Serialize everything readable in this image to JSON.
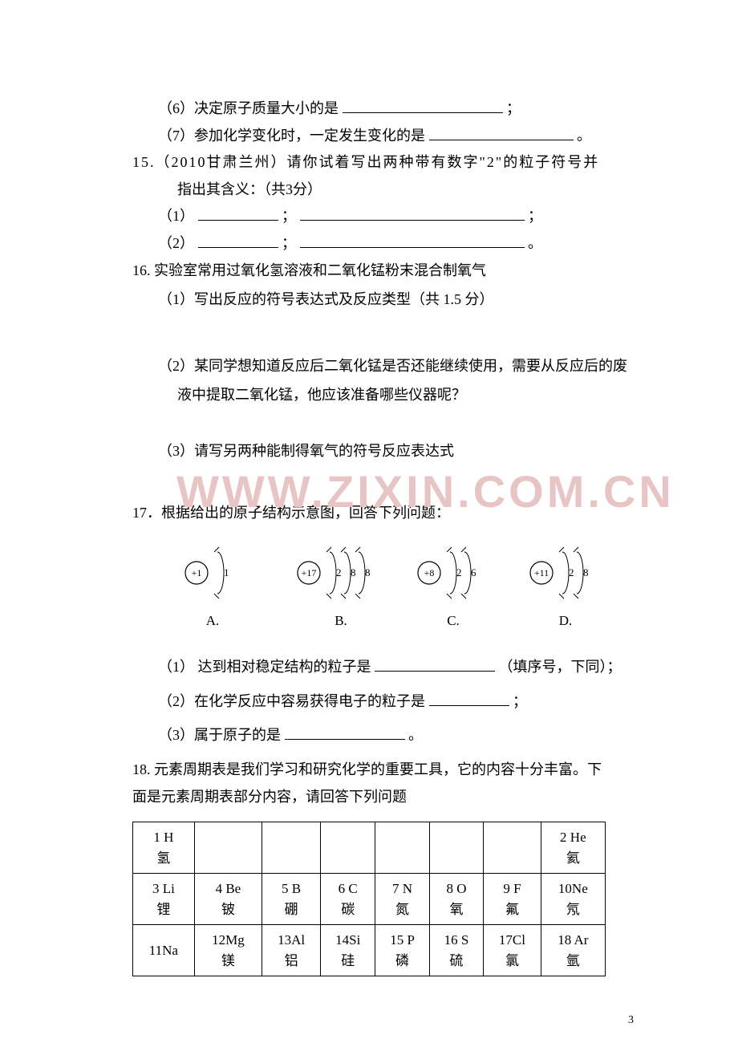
{
  "q14": {
    "item6": "（6）决定原子质量大小的是",
    "item6_after": "；",
    "item7": "（7）参加化学变化时，一定发生变化的是",
    "item7_after": "。"
  },
  "q15": {
    "stem": "15.（2010甘肃兰州）请你试着写出两种带有数字\"2\"的粒子符号并",
    "stem2": "指出其含义：（共3分）",
    "i1": "（1）",
    "i1_after": "；",
    "i1_end": "；",
    "i2": "（2）",
    "i2_after": "；",
    "i2_end": "。"
  },
  "q16": {
    "stem": "16. 实验室常用过氧化氢溶液和二氧化锰粉末混合制氧气",
    "p1": "（1）写出反应的符号表达式及反应类型（共 1.5 分）",
    "p2a": "（2）某同学想知道反应后二氧化锰是否还能继续使用，需要从反应后的废",
    "p2b": "液中提取二氧化锰，他应该准备哪些仪器呢？",
    "p3": "（3）请写另两种能制得氧气的符号反应表达式"
  },
  "q17": {
    "stem": "17．根据给出的原子结构示意图，回答下列问题：",
    "atoms": [
      {
        "label": "A.",
        "core": "+1",
        "shells": [
          "1"
        ]
      },
      {
        "label": "B.",
        "core": "+17",
        "shells": [
          "2",
          "8",
          "8"
        ]
      },
      {
        "label": "C.",
        "core": "+8",
        "shells": [
          "2",
          "6"
        ]
      },
      {
        "label": "D.",
        "core": "+11",
        "shells": [
          "2",
          "8"
        ]
      }
    ],
    "p1a": "（1）  达到相对稳定结构的粒子是",
    "p1b": "（填序号，下同）；",
    "p2a": "（2）在化学反应中容易获得电子的粒子是",
    "p2b": "；",
    "p3a": "（3）属于原子的是",
    "p3b": " 。"
  },
  "q18": {
    "stem1": "18. 元素周期表是我们学习和研究化学的重要工具，它的内容十分丰富。下",
    "stem2": "面是元素周期表部分内容，请回答下列问题",
    "rows": [
      [
        {
          "num": "1 H",
          "name": "氢"
        },
        null,
        null,
        null,
        null,
        null,
        null,
        {
          "num": "2 He",
          "name": "氦"
        }
      ],
      [
        {
          "num": "3 Li",
          "name": "锂"
        },
        {
          "num": "4 Be",
          "name": "铍"
        },
        {
          "num": "5 B",
          "name": "硼"
        },
        {
          "num": "6 C",
          "name": "碳"
        },
        {
          "num": "7 N",
          "name": "氮"
        },
        {
          "num": "8 O",
          "name": "氧"
        },
        {
          "num": "9 F",
          "name": "氟"
        },
        {
          "num": "10Ne",
          "name": "氖"
        }
      ],
      [
        {
          "num": "11Na",
          "name": ""
        },
        {
          "num": "12Mg",
          "name": "镁"
        },
        {
          "num": "13Al",
          "name": "铝"
        },
        {
          "num": "14Si",
          "name": "硅"
        },
        {
          "num": "15 P",
          "name": "磷"
        },
        {
          "num": "16 S",
          "name": "硫"
        },
        {
          "num": "17Cl",
          "name": "氯"
        },
        {
          "num": "18 Ar",
          "name": "氩"
        }
      ]
    ]
  },
  "watermark": "WWW.ZIXIN.COM.CN",
  "pageNum": "3"
}
